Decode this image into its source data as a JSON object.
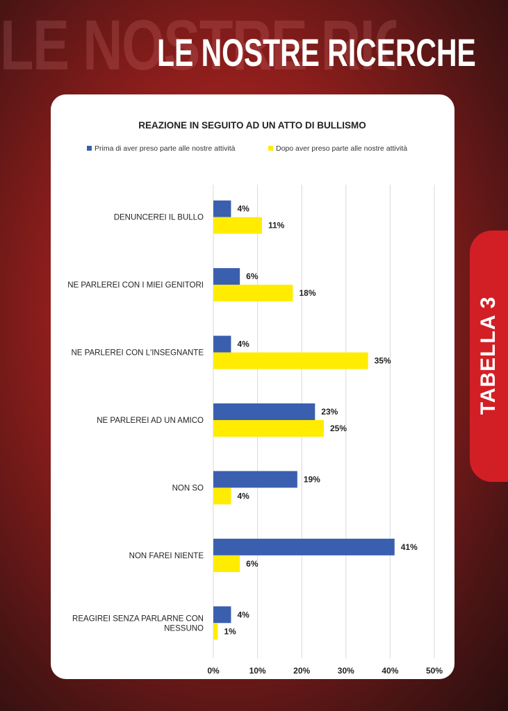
{
  "page": {
    "background_title": "LE NOSTRE RICERCHE",
    "title": "LE NOSTRE RICERCHE",
    "tab_label": "TABELLA 3"
  },
  "colors": {
    "before": "#3a5faf",
    "after": "#ffec00",
    "tab": "#d21f26"
  },
  "chart_data": {
    "type": "bar",
    "orientation": "horizontal",
    "title": "REAZIONE IN SEGUITO AD UN ATTO DI BULLISMO",
    "legend_position": "top",
    "categories": [
      [
        "DENUNCEREI IL BULLO"
      ],
      [
        "NE PARLEREI CON I MIEI GENITORI"
      ],
      [
        "NE PARLEREI CON L'INSEGNANTE"
      ],
      [
        "NE PARLEREI AD UN AMICO"
      ],
      [
        "NON SO"
      ],
      [
        "NON FAREI NIENTE"
      ],
      [
        "REAGIREI SENZA PARLARNE CON",
        "NESSUNO"
      ]
    ],
    "series": [
      {
        "name": "Prima di aver preso parte alle nostre attività",
        "values": [
          4,
          6,
          4,
          23,
          19,
          41,
          4
        ],
        "labels": [
          "4%",
          "6%",
          "4%",
          "23%",
          "19%",
          "41%",
          "4%"
        ]
      },
      {
        "name": "Dopo aver preso parte alle nostre attività",
        "values": [
          11,
          18,
          35,
          25,
          4,
          6,
          1
        ],
        "labels": [
          "11%",
          "18%",
          "35%",
          "25%",
          "4%",
          "6%",
          "1%"
        ]
      }
    ],
    "xlim": [
      0,
      50
    ],
    "xticks": [
      0,
      10,
      20,
      30,
      40,
      50
    ],
    "xtick_labels": [
      "0%",
      "10%",
      "20%",
      "30%",
      "40%",
      "50%"
    ],
    "grid": "vertical"
  }
}
